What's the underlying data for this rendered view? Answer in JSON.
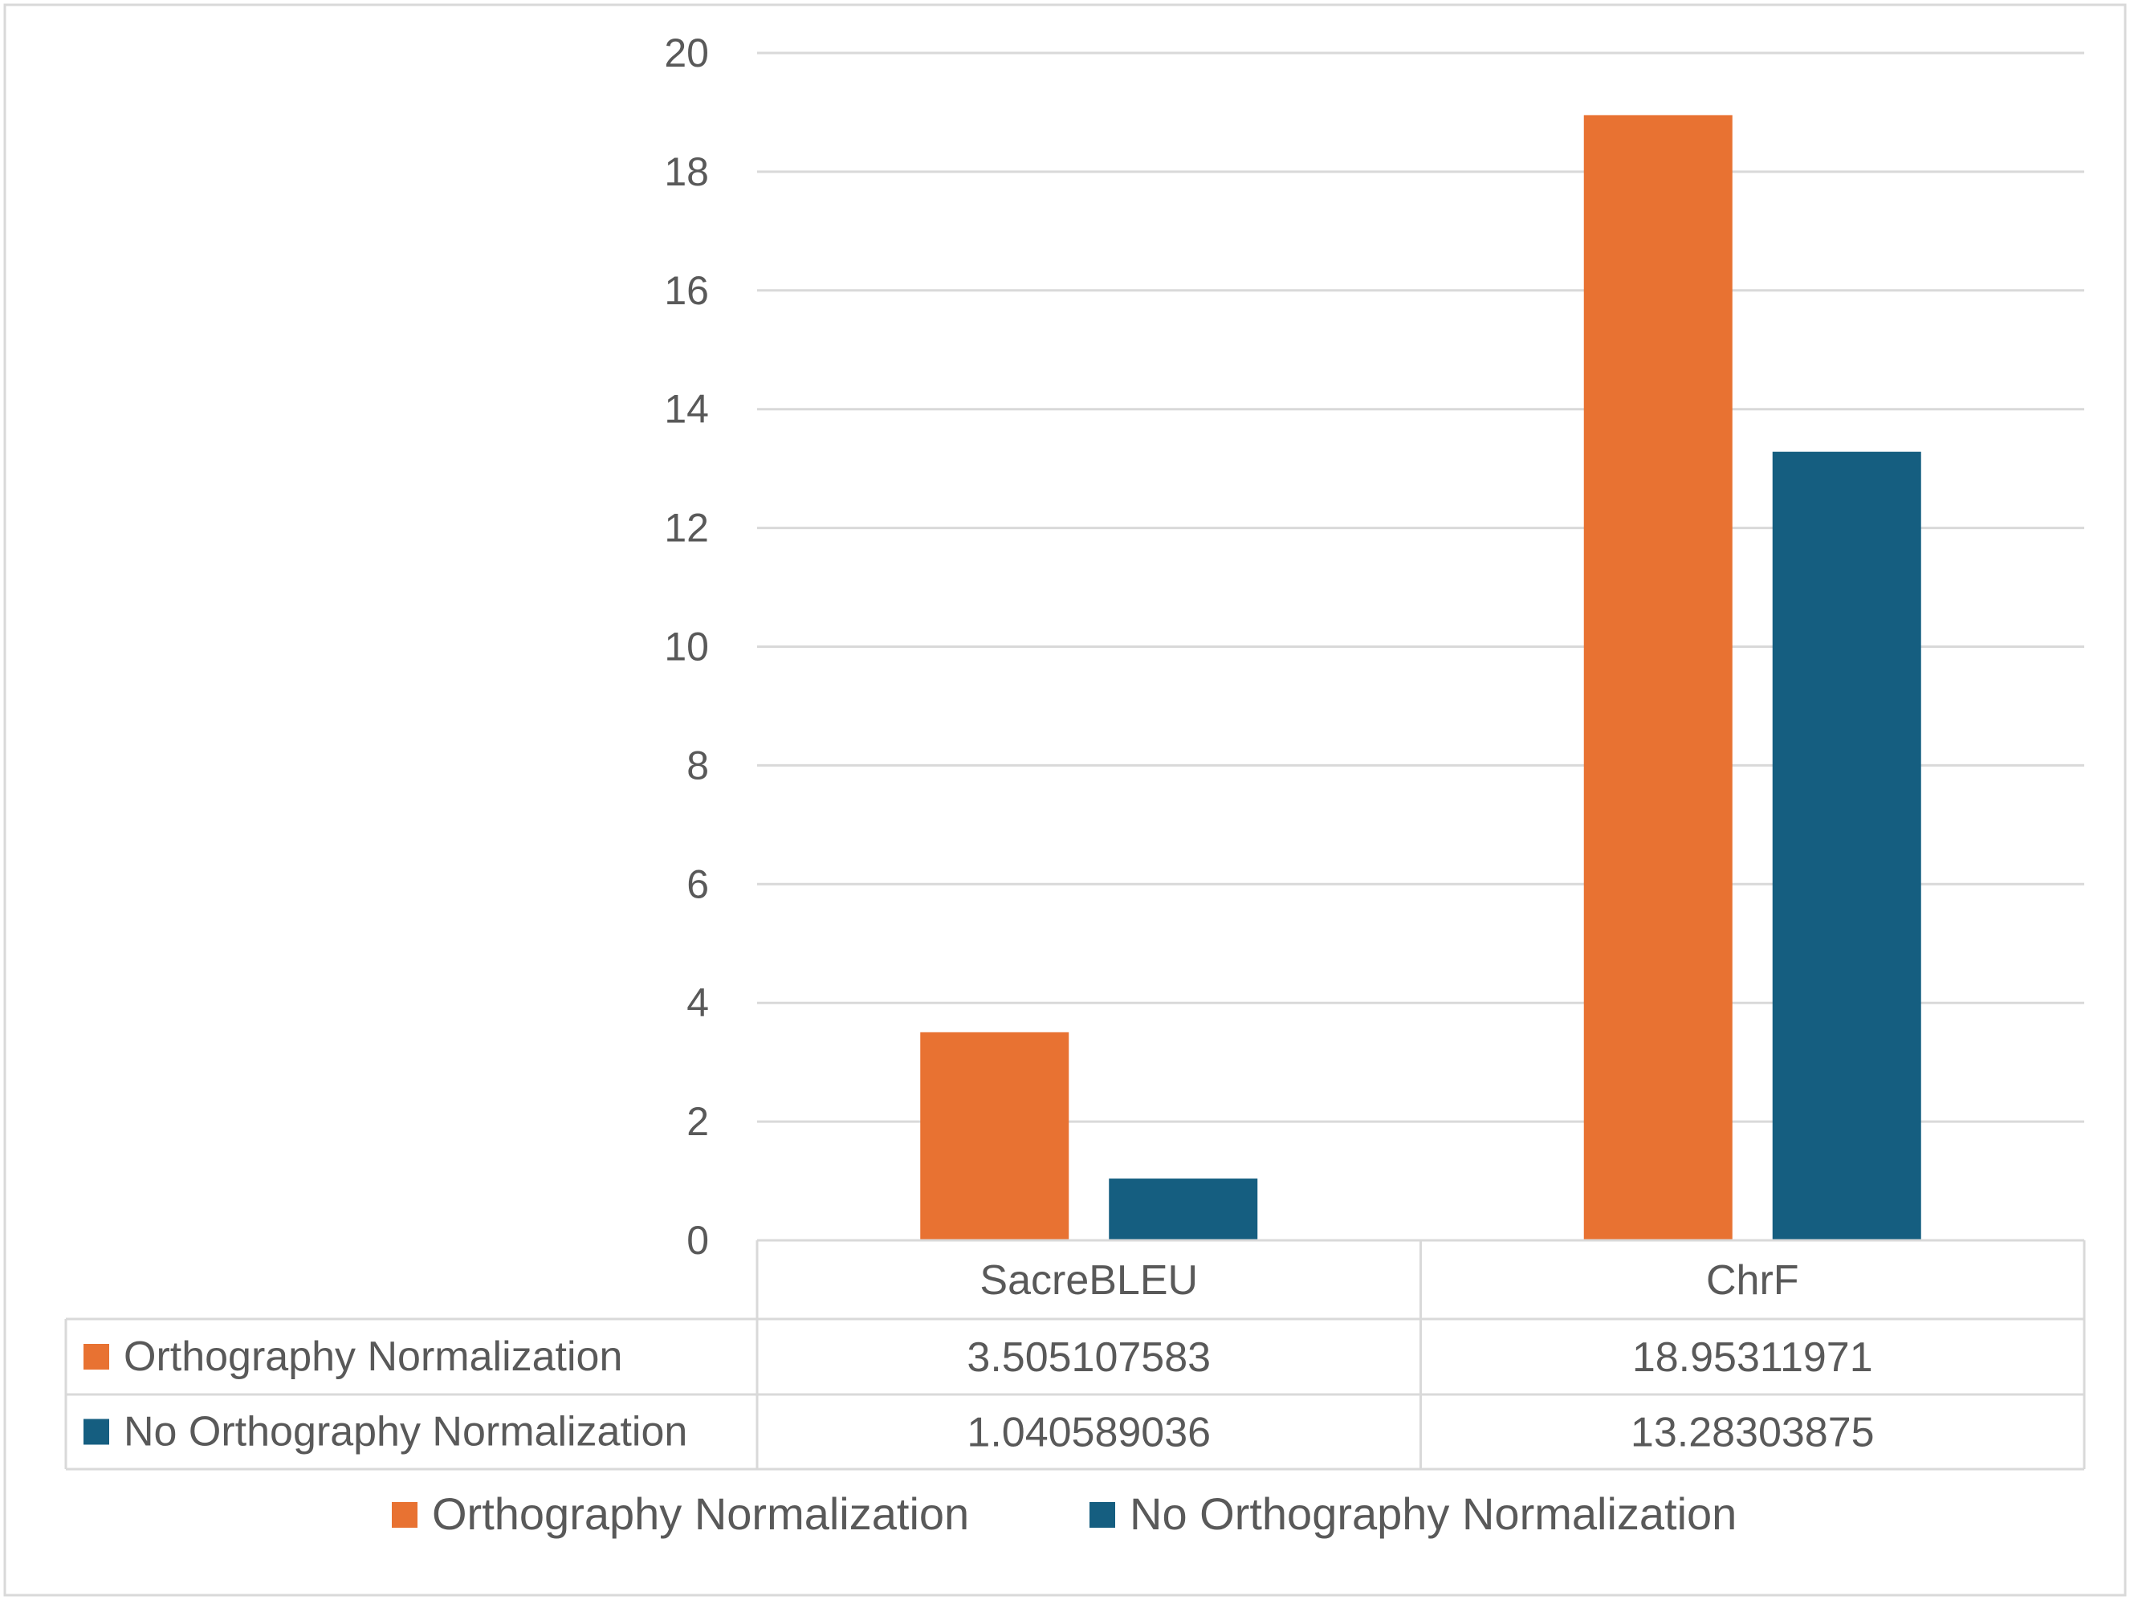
{
  "chart_data": {
    "type": "bar",
    "title": "",
    "xlabel": "",
    "ylabel": "",
    "categories": [
      "SacreBLEU",
      "ChrF"
    ],
    "series": [
      {
        "name": "Orthography Normalization",
        "color": "#E87232",
        "values": [
          3.505107583,
          18.95311971
        ],
        "labels": [
          "3.505107583",
          "18.95311971"
        ]
      },
      {
        "name": "No Orthography Normalization",
        "color": "#155E80",
        "values": [
          1.040589036,
          13.28303875
        ],
        "labels": [
          "1.040589036",
          "13.28303875"
        ]
      }
    ],
    "ylim": [
      0,
      20
    ],
    "yticks": [
      0,
      2,
      4,
      6,
      8,
      10,
      12,
      14,
      16,
      18,
      20
    ],
    "grid": true,
    "legend": "bottom",
    "data_table": true
  },
  "colors": {
    "axis_text": "#595959",
    "gridline": "#D9D9D9",
    "table_border": "#D9D9D9",
    "frame_border": "#D9D9D9"
  }
}
